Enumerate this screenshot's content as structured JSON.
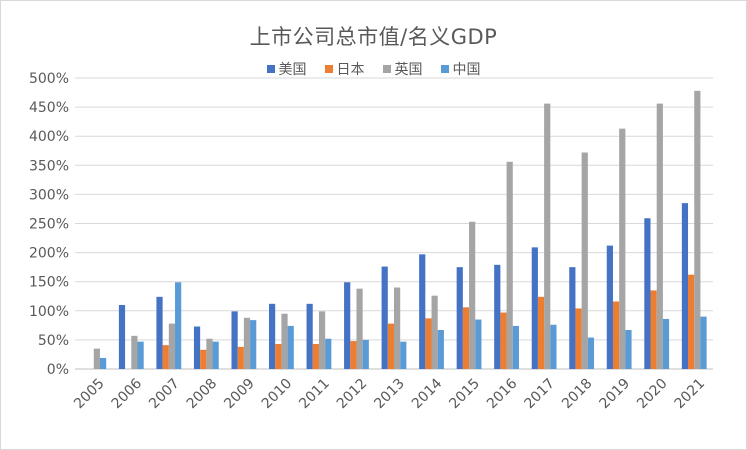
{
  "title": "上市公司总市值/名义GDP",
  "colors": {
    "us": "#4472c4",
    "jp": "#ed7d31",
    "uk": "#a5a5a5",
    "cn": "#5b9bd5",
    "grid": "#d9d9d9",
    "axis": "#bfbfbf"
  },
  "legend": [
    {
      "label": "美国",
      "color": "#4472c4"
    },
    {
      "label": "日本",
      "color": "#ed7d31"
    },
    {
      "label": "英国",
      "color": "#a5a5a5"
    },
    {
      "label": "中国",
      "color": "#5b9bd5"
    }
  ],
  "chart_data": {
    "type": "bar",
    "title": "上市公司总市值/名义GDP",
    "categories": [
      "2005",
      "2006",
      "2007",
      "2008",
      "2009",
      "2010",
      "2011",
      "2012",
      "2013",
      "2014",
      "2015",
      "2016",
      "2017",
      "2018",
      "2019",
      "2020",
      "2021"
    ],
    "ylim": [
      0,
      500
    ],
    "yticks": [
      0,
      50,
      100,
      150,
      200,
      250,
      300,
      350,
      400,
      450,
      500
    ],
    "ytick_labels": [
      "0%",
      "50%",
      "100%",
      "150%",
      "200%",
      "250%",
      "300%",
      "350%",
      "400%",
      "450%",
      "500%"
    ],
    "grid": true,
    "legend_position": "top",
    "series": [
      {
        "name": "美国",
        "color": "#4472c4",
        "values": [
          null,
          110,
          124,
          73,
          99,
          112,
          112,
          149,
          176,
          197,
          175,
          179,
          209,
          175,
          212,
          259,
          285
        ]
      },
      {
        "name": "日本",
        "color": "#ed7d31",
        "values": [
          null,
          null,
          41,
          33,
          38,
          43,
          43,
          48,
          78,
          87,
          106,
          97,
          124,
          104,
          116,
          135,
          162
        ]
      },
      {
        "name": "英国",
        "color": "#a5a5a5",
        "values": [
          35,
          57,
          78,
          52,
          88,
          95,
          99,
          138,
          140,
          126,
          253,
          356,
          456,
          372,
          413,
          456,
          478
        ]
      },
      {
        "name": "中国",
        "color": "#5b9bd5",
        "values": [
          19,
          47,
          149,
          47,
          84,
          74,
          52,
          50,
          47,
          67,
          85,
          74,
          76,
          54,
          67,
          86,
          90
        ]
      }
    ]
  }
}
